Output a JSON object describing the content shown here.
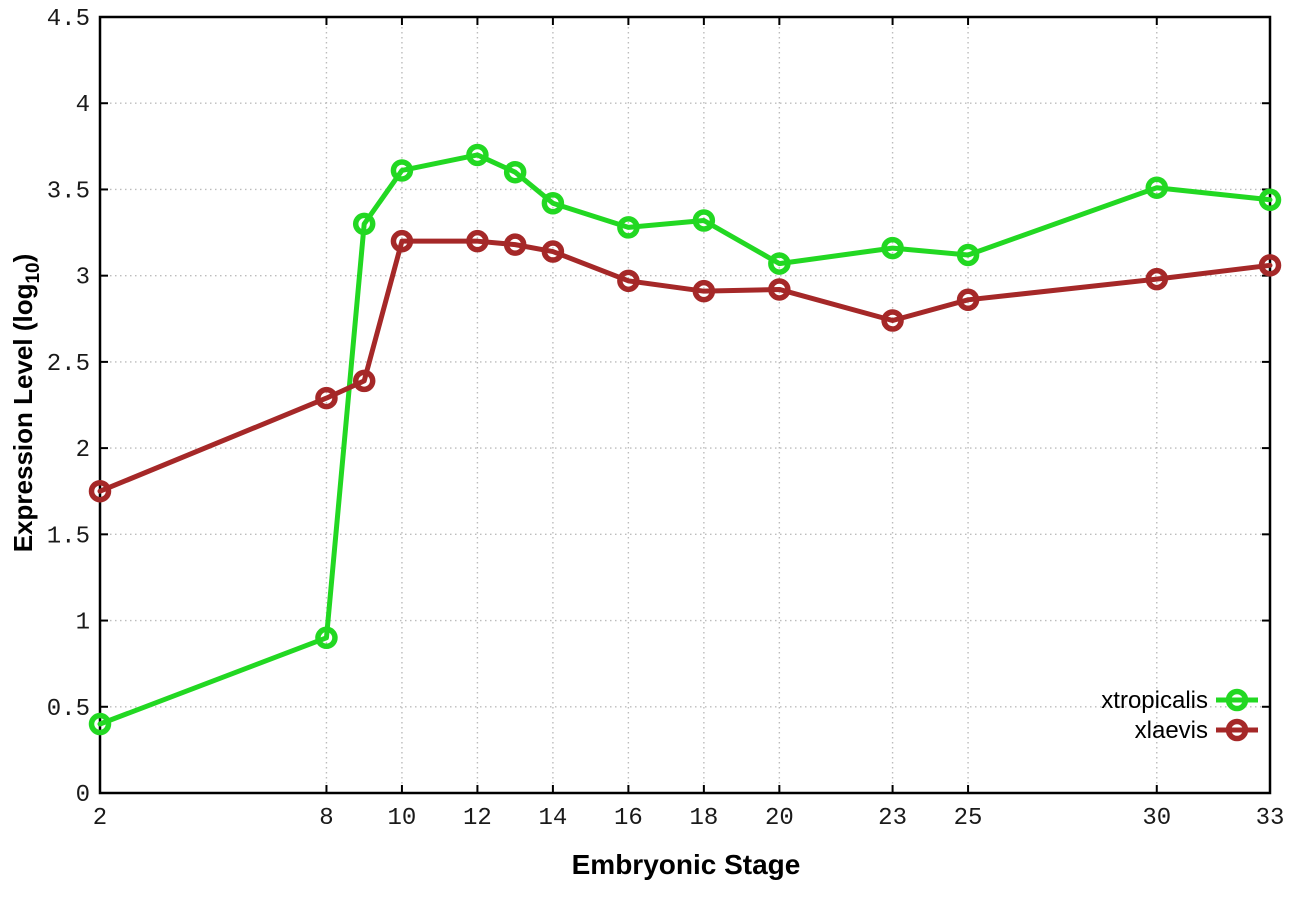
{
  "figure": {
    "background": "#ffffff",
    "border_color": "#000000",
    "grid_color": "#bcbcbc",
    "tick_label_color": "#1a1a1a"
  },
  "chart_data": {
    "type": "line",
    "title": "",
    "xlabel": "Embryonic Stage",
    "ylabel": "Expression Level (log10)",
    "ylabel_parts": {
      "main": "Expression Level (log",
      "sub": "10",
      "end": ")"
    },
    "xlim": [
      2,
      33
    ],
    "ylim": [
      0,
      4.5
    ],
    "grid": true,
    "legend_position": "inside-bottom-right",
    "x_ticks": [
      2,
      8,
      10,
      12,
      14,
      16,
      18,
      20,
      23,
      25,
      30,
      33
    ],
    "x_tick_labels": [
      "2",
      "8",
      "10",
      "12",
      "14",
      "16",
      "18",
      "20",
      "23",
      "25",
      "30",
      "33"
    ],
    "y_ticks": [
      0,
      0.5,
      1,
      1.5,
      2,
      2.5,
      3,
      3.5,
      4,
      4.5
    ],
    "y_tick_labels": [
      "0",
      "0.5",
      "1",
      "1.5",
      "2",
      "2.5",
      "3",
      "3.5",
      "4",
      "4.5"
    ],
    "x": [
      2,
      8,
      9,
      10,
      12,
      13,
      14,
      16,
      18,
      20,
      23,
      25,
      30,
      33
    ],
    "series": [
      {
        "name": "xtropicalis",
        "color": "#22d822",
        "marker": "open-circle",
        "values": [
          0.4,
          0.9,
          3.3,
          3.61,
          3.7,
          3.6,
          3.42,
          3.28,
          3.32,
          3.07,
          3.16,
          3.12,
          3.51,
          3.44
        ]
      },
      {
        "name": "xlaevis",
        "color": "#a52828",
        "marker": "open-circle",
        "values": [
          1.75,
          2.29,
          2.39,
          3.2,
          3.2,
          3.18,
          3.14,
          2.97,
          2.91,
          2.92,
          2.74,
          2.86,
          2.98,
          3.06
        ]
      }
    ]
  }
}
